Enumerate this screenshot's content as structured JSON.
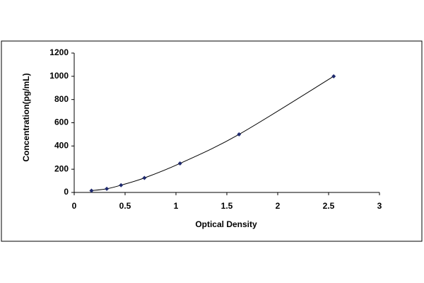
{
  "chart_data": {
    "type": "scatter",
    "line": true,
    "x_label": "Optical Density",
    "y_label": "Concentration(pg/mL)",
    "x": [
      0.17,
      0.32,
      0.46,
      0.69,
      1.04,
      1.62,
      2.55
    ],
    "values": [
      15.6,
      31.25,
      62.5,
      125,
      250,
      500,
      1000
    ],
    "color": "#1f2a6e",
    "line_color": "#000000",
    "xlim": [
      0,
      3
    ],
    "xticks": [
      0,
      0.5,
      1,
      1.5,
      2,
      2.5,
      3
    ],
    "ylim": [
      0,
      1200
    ],
    "yticks": [
      0,
      200,
      400,
      600,
      800,
      1000,
      1200
    ]
  }
}
